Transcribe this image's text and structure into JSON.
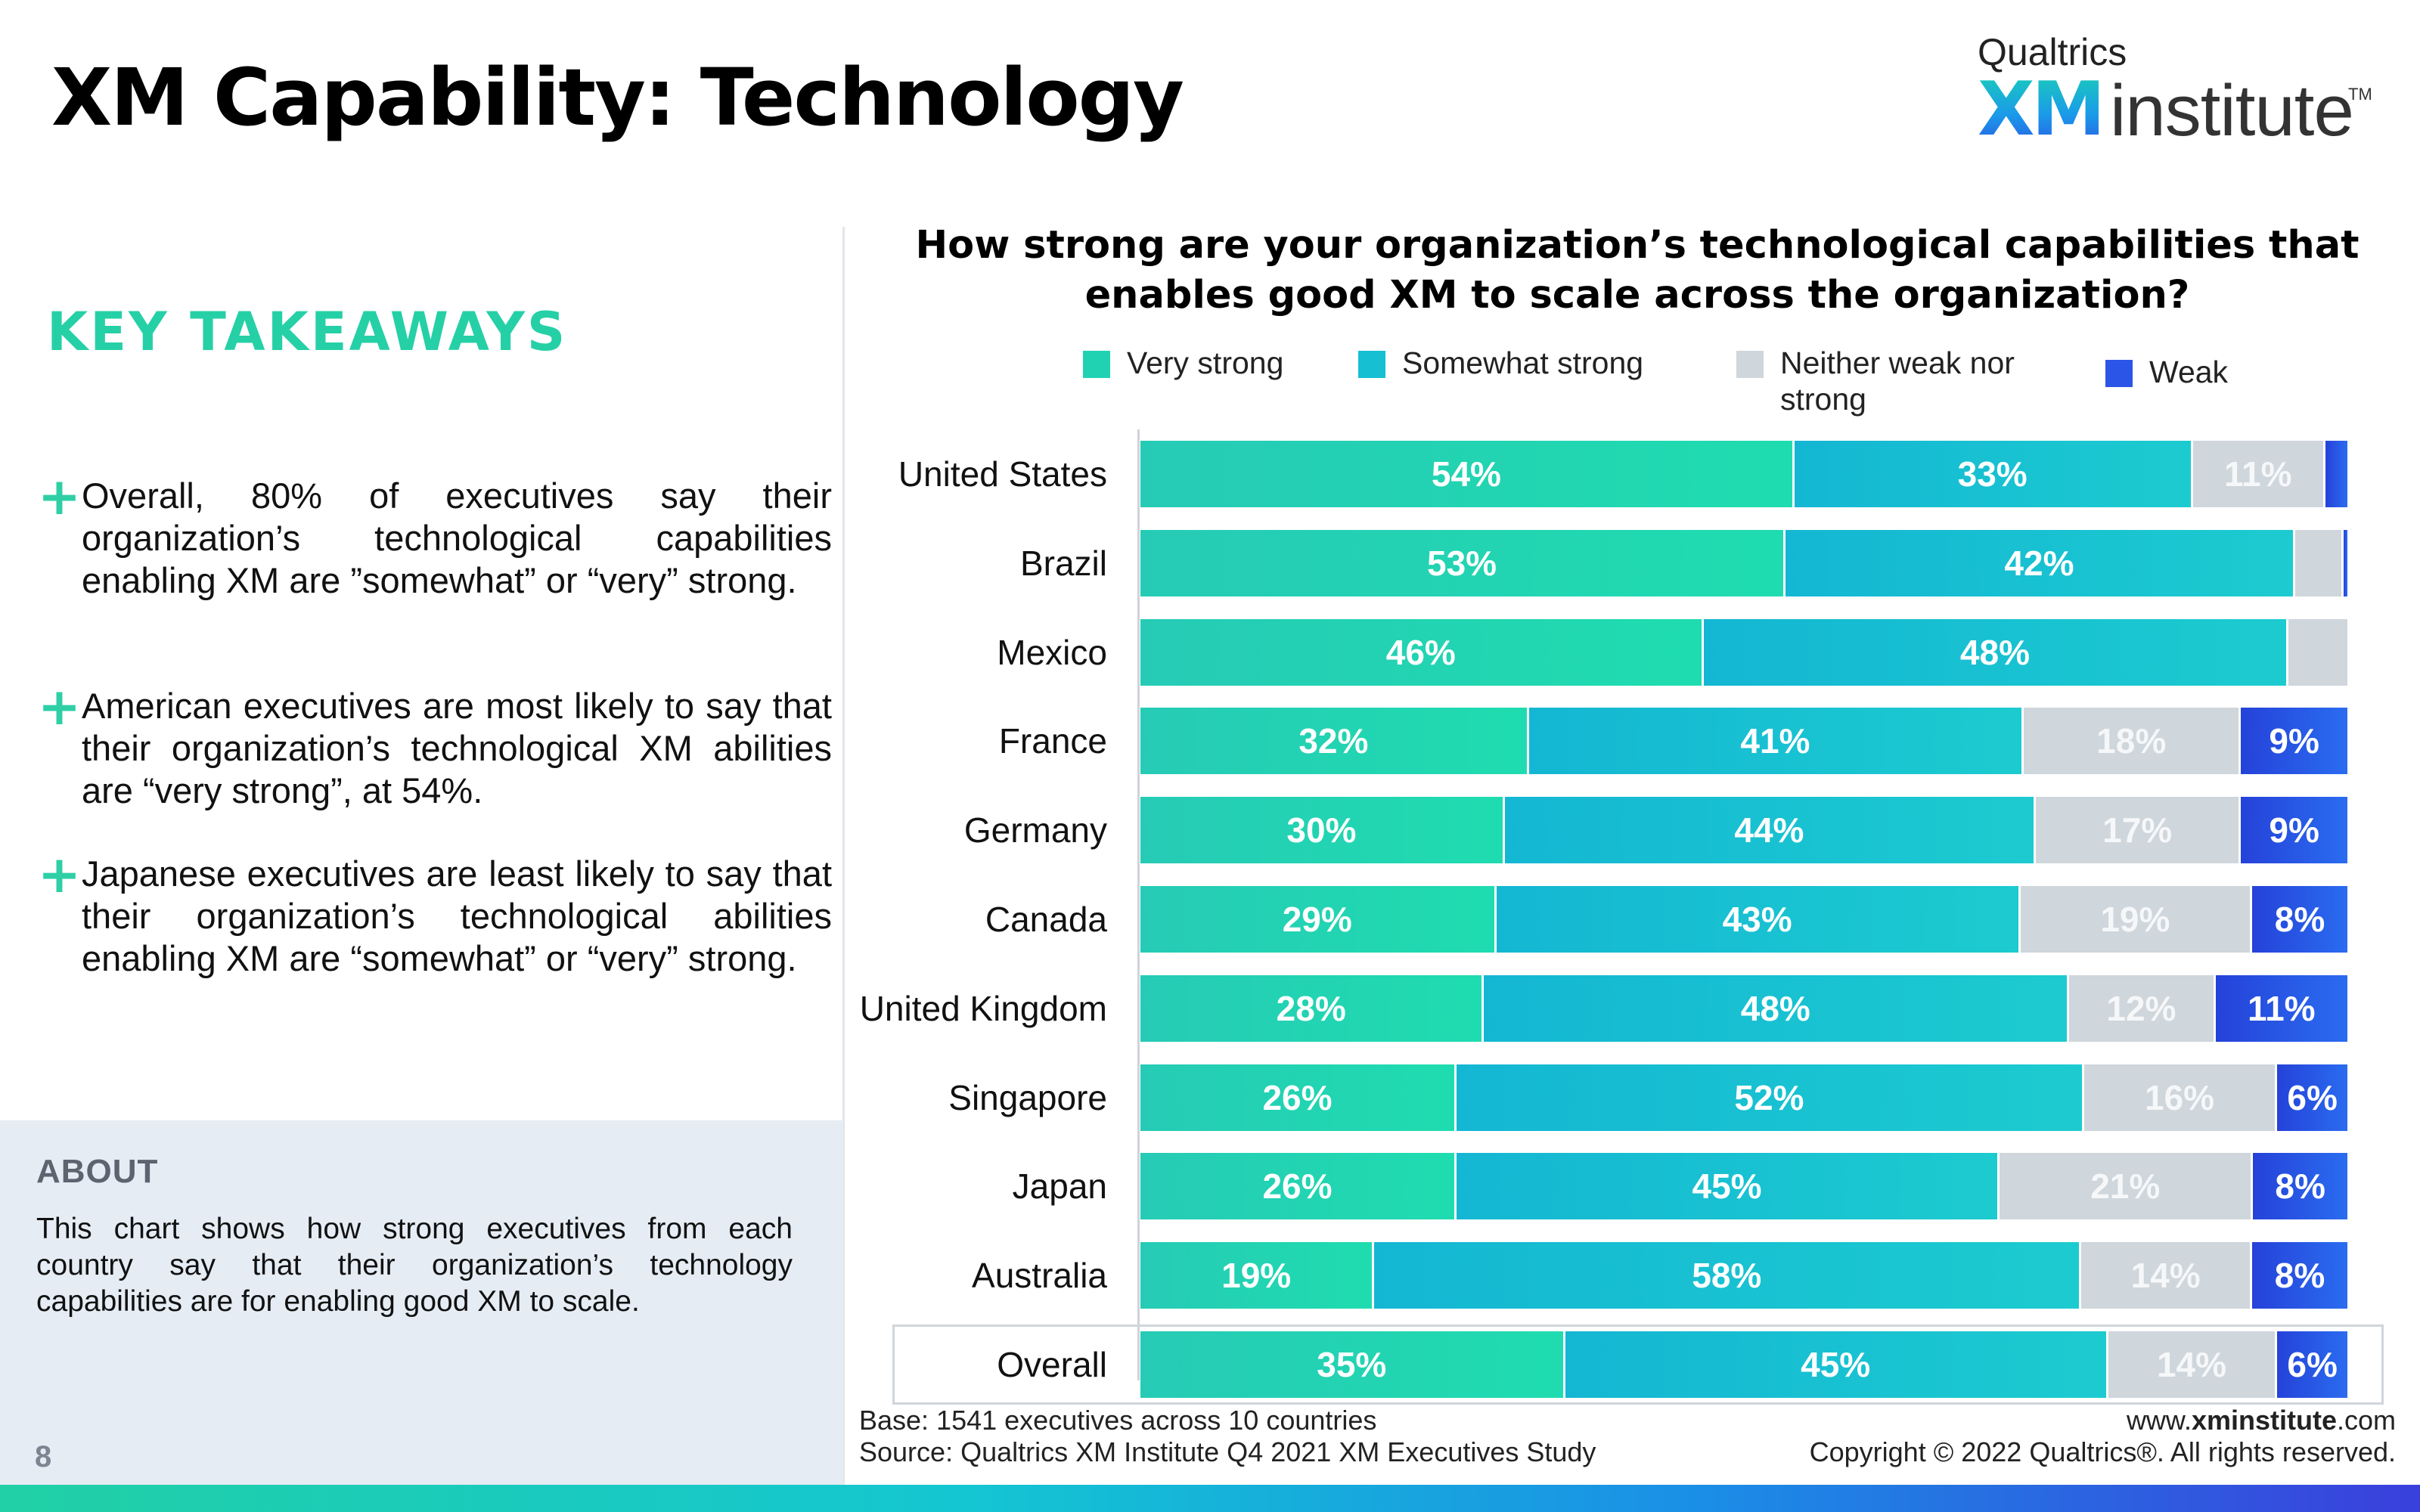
{
  "page": {
    "title": "XM Capability: Technology",
    "page_number": "8"
  },
  "brand": {
    "top": "Qualtrics",
    "xm": "XM",
    "institute": "institute",
    "tm": "TM"
  },
  "takeaways": {
    "heading": "KEY TAKEAWAYS",
    "plus": "+",
    "items": [
      "Overall, 80% of executives say their organization’s technological capabilities enabling XM are ”somewhat” or “very” strong.",
      "American executives are most likely to say that their organization’s technological XM abilities are “very strong”, at 54%.",
      "Japanese executives are least likely to say that their organization’s technological abilities enabling XM are “somewhat” or “very” strong."
    ]
  },
  "about": {
    "title": "ABOUT",
    "text": "This chart shows how strong executives from each country say that their organization’s technology capabilities are for enabling good XM to scale."
  },
  "chart_data": {
    "type": "bar",
    "orientation": "horizontal",
    "stacked": true,
    "title": "How strong are your organization’s technological capabilities that enables good XM to scale across the organization?",
    "xlabel": "",
    "ylabel": "",
    "xlim": [
      0,
      100
    ],
    "legend_position": "top",
    "categories": [
      "United States",
      "Brazil",
      "Mexico",
      "France",
      "Germany",
      "Canada",
      "United Kingdom",
      "Singapore",
      "Japan",
      "Australia",
      "Overall"
    ],
    "series": [
      {
        "name": "Very strong",
        "color": "#20d2b2",
        "values": [
          54,
          53,
          46,
          32,
          30,
          29,
          28,
          26,
          26,
          19,
          35
        ]
      },
      {
        "name": "Somewhat strong",
        "color": "#16bfd2",
        "values": [
          33,
          42,
          48,
          41,
          44,
          43,
          48,
          52,
          45,
          58,
          45
        ]
      },
      {
        "name": "Neither weak nor strong",
        "color": "#cfd6dc",
        "values": [
          11,
          4,
          5,
          18,
          17,
          19,
          12,
          16,
          21,
          14,
          14
        ]
      },
      {
        "name": "Weak",
        "color": "#2a55e6",
        "values": [
          2,
          0.5,
          0,
          9,
          9,
          8,
          11,
          6,
          8,
          8,
          6
        ]
      }
    ],
    "data_labels": [
      [
        "54%",
        "33%",
        "11%",
        ""
      ],
      [
        "53%",
        "42%",
        "",
        ""
      ],
      [
        "46%",
        "48%",
        "",
        ""
      ],
      [
        "32%",
        "41%",
        "18%",
        "9%"
      ],
      [
        "30%",
        "44%",
        "17%",
        "9%"
      ],
      [
        "29%",
        "43%",
        "19%",
        "8%"
      ],
      [
        "28%",
        "48%",
        "12%",
        "11%"
      ],
      [
        "26%",
        "52%",
        "16%",
        "6%"
      ],
      [
        "26%",
        "45%",
        "21%",
        "8%"
      ],
      [
        "19%",
        "58%",
        "14%",
        "8%"
      ],
      [
        "35%",
        "45%",
        "14%",
        "6%"
      ]
    ],
    "highlighted_category": "Overall"
  },
  "footer": {
    "base": "Base: 1541 executives across 10 countries",
    "source": "Source: Qualtrics XM Institute Q4 2021 XM Executives Study",
    "site_prefix": "www.",
    "site_bold": "xminstitute",
    "site_suffix": ".com",
    "copyright": "Copyright © 2022 Qualtrics®. All rights reserved."
  }
}
